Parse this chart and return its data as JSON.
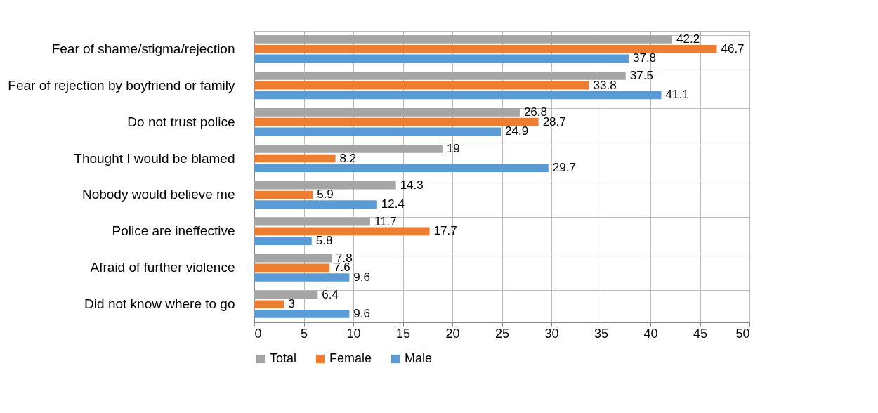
{
  "chart_data": {
    "type": "bar",
    "orientation": "horizontal",
    "categories": [
      "Fear of shame/stigma/rejection",
      "Fear of rejection by boyfriend or family",
      "Do not trust police",
      "Thought I would be blamed",
      "Nobody would believe me",
      "Police are ineffective",
      "Afraid of further violence",
      "Did not know where to go"
    ],
    "series": [
      {
        "name": "Total",
        "color": "#a5a5a5",
        "values": [
          42.2,
          37.5,
          26.8,
          19,
          14.3,
          11.7,
          7.8,
          6.4
        ]
      },
      {
        "name": "Female",
        "color": "#ed7d31",
        "values": [
          46.7,
          33.8,
          28.7,
          8.2,
          5.9,
          17.7,
          7.6,
          3
        ]
      },
      {
        "name": "Male",
        "color": "#5b9bd5",
        "values": [
          37.8,
          41.1,
          24.9,
          29.7,
          12.4,
          5.8,
          9.6,
          9.6
        ]
      }
    ],
    "xlim": [
      0,
      50
    ],
    "xticks": [
      0,
      5,
      10,
      15,
      20,
      25,
      30,
      35,
      40,
      45,
      50
    ],
    "grid": true,
    "legend": "bottom",
    "data_labels": true
  }
}
